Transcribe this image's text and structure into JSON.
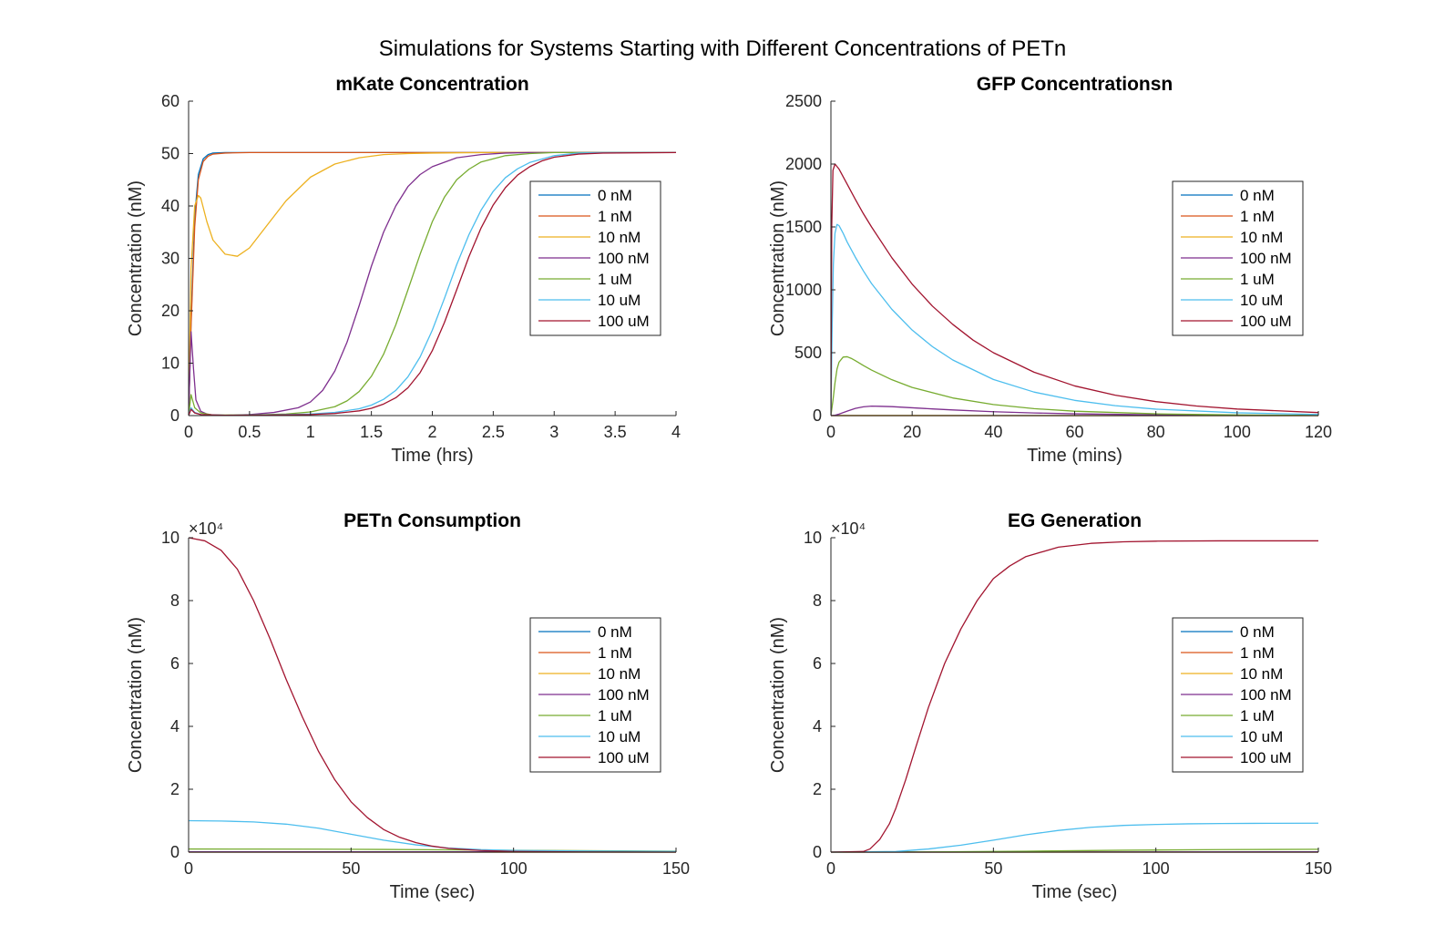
{
  "figure": {
    "title": "Simulations for Systems Starting with Different Concentrations of PETn"
  },
  "colors": {
    "0 nM": "#0072BD",
    "1 nM": "#D95319",
    "10 nM": "#EDB120",
    "100 nM": "#7E2F8E",
    "1 uM": "#77AC30",
    "10 uM": "#4DBEEE",
    "100 uM": "#A2142F"
  },
  "chart_data": [
    {
      "id": "mkate",
      "type": "line",
      "title": "mKate Concentration",
      "xlabel": "Time (hrs)",
      "ylabel": "Concentration (nM)",
      "xlim": [
        0,
        4
      ],
      "ylim": [
        0,
        60
      ],
      "xticks": [
        0,
        0.5,
        1,
        1.5,
        2,
        2.5,
        3,
        3.5,
        4
      ],
      "xticklabels": [
        "0",
        "0.5",
        "1",
        "1.5",
        "2",
        "2.5",
        "3",
        "3.5",
        "4"
      ],
      "yticks": [
        0,
        10,
        20,
        30,
        40,
        50,
        60
      ],
      "yticklabels": [
        "0",
        "10",
        "20",
        "30",
        "40",
        "50",
        "60"
      ],
      "exponent_label": "",
      "legend_position": "right",
      "series": [
        {
          "name": "0 nM",
          "x": [
            0,
            0.02,
            0.05,
            0.08,
            0.12,
            0.16,
            0.2,
            0.3,
            0.5,
            1,
            2,
            3,
            4
          ],
          "y": [
            0,
            18,
            38,
            46,
            49,
            49.8,
            50.1,
            50.2,
            50.2,
            50.2,
            50.2,
            50.2,
            50.2
          ]
        },
        {
          "name": "1 nM",
          "x": [
            0,
            0.02,
            0.05,
            0.08,
            0.12,
            0.16,
            0.2,
            0.3,
            0.5,
            1,
            2,
            3,
            4
          ],
          "y": [
            0,
            17,
            36,
            45,
            48.5,
            49.5,
            49.9,
            50.1,
            50.2,
            50.2,
            50.2,
            50.2,
            50.2
          ]
        },
        {
          "name": "10 nM",
          "x": [
            0,
            0.02,
            0.05,
            0.08,
            0.1,
            0.15,
            0.2,
            0.3,
            0.4,
            0.5,
            0.6,
            0.8,
            1.0,
            1.2,
            1.4,
            1.6,
            1.8,
            2.0,
            2.5,
            3,
            4
          ],
          "y": [
            0,
            28,
            40,
            42,
            41.5,
            37,
            33.5,
            30.8,
            30.4,
            32,
            35,
            41,
            45.5,
            48,
            49.2,
            49.8,
            50,
            50.1,
            50.2,
            50.2,
            50.2
          ]
        },
        {
          "name": "100 nM",
          "x": [
            0,
            0.02,
            0.04,
            0.06,
            0.1,
            0.15,
            0.2,
            0.3,
            0.5,
            0.7,
            0.9,
            1.0,
            1.1,
            1.2,
            1.3,
            1.4,
            1.5,
            1.6,
            1.7,
            1.8,
            1.9,
            2.0,
            2.2,
            2.4,
            2.6,
            2.8,
            3,
            4
          ],
          "y": [
            0,
            16,
            9,
            3,
            0.8,
            0.3,
            0.1,
            0.05,
            0.2,
            0.6,
            1.5,
            2.6,
            4.8,
            8.5,
            14,
            21,
            28.5,
            35,
            40,
            43.7,
            46,
            47.5,
            49.2,
            49.8,
            50.1,
            50.2,
            50.2,
            50.2
          ]
        },
        {
          "name": "1 uM",
          "x": [
            0,
            0.02,
            0.05,
            0.1,
            0.2,
            0.5,
            0.8,
            1.0,
            1.2,
            1.3,
            1.4,
            1.5,
            1.6,
            1.7,
            1.8,
            1.9,
            2.0,
            2.1,
            2.2,
            2.3,
            2.4,
            2.6,
            2.8,
            3.0,
            3.2,
            4
          ],
          "y": [
            0,
            4,
            1.5,
            0.5,
            0.1,
            0.1,
            0.3,
            0.7,
            1.7,
            2.8,
            4.6,
            7.5,
            11.7,
            17.3,
            24,
            30.8,
            37,
            41.7,
            45,
            47,
            48.4,
            49.6,
            50,
            50.2,
            50.2,
            50.2
          ]
        },
        {
          "name": "10 uM",
          "x": [
            0,
            0.02,
            0.05,
            0.1,
            0.3,
            0.6,
            1.0,
            1.2,
            1.4,
            1.5,
            1.6,
            1.7,
            1.8,
            1.9,
            2.0,
            2.1,
            2.2,
            2.3,
            2.4,
            2.5,
            2.6,
            2.7,
            2.8,
            3.0,
            3.2,
            3.4,
            4
          ],
          "y": [
            0,
            1.5,
            0.6,
            0.2,
            0.05,
            0.1,
            0.3,
            0.6,
            1.3,
            2,
            3.1,
            4.8,
            7.4,
            11.2,
            16.3,
            22.4,
            28.8,
            34.5,
            39.2,
            42.8,
            45.4,
            47.1,
            48.3,
            49.6,
            50.1,
            50.2,
            50.2
          ]
        },
        {
          "name": "100 uM",
          "x": [
            0,
            0.02,
            0.05,
            0.1,
            0.3,
            0.6,
            1.0,
            1.2,
            1.4,
            1.5,
            1.6,
            1.7,
            1.8,
            1.9,
            2.0,
            2.1,
            2.2,
            2.3,
            2.4,
            2.5,
            2.6,
            2.7,
            2.8,
            2.9,
            3.0,
            3.2,
            3.4,
            4
          ],
          "y": [
            0,
            1.2,
            0.5,
            0.2,
            0.05,
            0.08,
            0.2,
            0.4,
            0.9,
            1.4,
            2.2,
            3.4,
            5.3,
            8.2,
            12.4,
            17.8,
            24,
            30.3,
            35.8,
            40.2,
            43.5,
            45.9,
            47.5,
            48.6,
            49.3,
            49.9,
            50.1,
            50.2
          ]
        }
      ]
    },
    {
      "id": "gfp",
      "type": "line",
      "title": "GFP Concentrationsn",
      "xlabel": "Time (mins)",
      "ylabel": "Concentration (nM)",
      "xlim": [
        0,
        120
      ],
      "ylim": [
        0,
        2500
      ],
      "xticks": [
        0,
        20,
        40,
        60,
        80,
        100,
        120
      ],
      "xticklabels": [
        "0",
        "20",
        "40",
        "60",
        "80",
        "100",
        "120"
      ],
      "yticks": [
        0,
        500,
        1000,
        1500,
        2000,
        2500
      ],
      "yticklabels": [
        "0",
        "500",
        "1000",
        "1500",
        "2000",
        "2500"
      ],
      "exponent_label": "",
      "legend_position": "right",
      "series": [
        {
          "name": "0 nM",
          "x": [
            0,
            120
          ],
          "y": [
            0,
            0
          ]
        },
        {
          "name": "1 nM",
          "x": [
            0,
            120
          ],
          "y": [
            0,
            0
          ]
        },
        {
          "name": "10 nM",
          "x": [
            0,
            2,
            5,
            10,
            20,
            40,
            80,
            120
          ],
          "y": [
            0,
            0.3,
            0.5,
            0.5,
            0.4,
            0.2,
            0.05,
            0
          ]
        },
        {
          "name": "100 nM",
          "x": [
            0,
            1,
            2,
            4,
            6,
            8,
            10,
            12,
            15,
            20,
            25,
            30,
            40,
            50,
            60,
            80,
            100,
            120
          ],
          "y": [
            0,
            3,
            12,
            35,
            57,
            70,
            75,
            74,
            71,
            62,
            53,
            45,
            31,
            21,
            14,
            6,
            2.5,
            1
          ]
        },
        {
          "name": "1 uM",
          "x": [
            0,
            0.5,
            1,
            1.5,
            2,
            3,
            4,
            5,
            6,
            8,
            10,
            15,
            20,
            30,
            40,
            50,
            60,
            80,
            100,
            120
          ],
          "y": [
            0,
            120,
            260,
            370,
            425,
            465,
            468,
            455,
            437,
            398,
            362,
            285,
            224,
            140,
            88,
            55,
            35,
            14,
            5,
            2
          ]
        },
        {
          "name": "10 uM",
          "x": [
            0,
            0.3,
            0.6,
            1,
            1.5,
            2,
            3,
            4,
            6,
            8,
            10,
            15,
            20,
            25,
            30,
            40,
            50,
            60,
            70,
            80,
            100,
            120
          ],
          "y": [
            0,
            700,
            1200,
            1450,
            1520,
            1510,
            1450,
            1380,
            1260,
            1150,
            1050,
            845,
            680,
            548,
            442,
            287,
            187,
            121,
            79,
            51,
            22,
            9
          ]
        },
        {
          "name": "100 uM",
          "x": [
            0,
            0.2,
            0.5,
            1,
            2,
            4,
            6,
            8,
            10,
            15,
            20,
            25,
            30,
            35,
            40,
            50,
            60,
            70,
            80,
            90,
            100,
            120
          ],
          "y": [
            0,
            1500,
            1950,
            2000,
            1960,
            1840,
            1720,
            1605,
            1500,
            1255,
            1045,
            870,
            725,
            600,
            500,
            345,
            236,
            162,
            111,
            76,
            52,
            24
          ]
        }
      ]
    },
    {
      "id": "petn",
      "type": "line",
      "title": "PETn Consumption",
      "xlabel": "Time (sec)",
      "ylabel": "Concentration (nM)",
      "xlim": [
        0,
        150
      ],
      "ylim": [
        0,
        10
      ],
      "xticks": [
        0,
        50,
        100,
        150
      ],
      "xticklabels": [
        "0",
        "50",
        "100",
        "150"
      ],
      "yticks": [
        0,
        2,
        4,
        6,
        8,
        10
      ],
      "yticklabels": [
        "0",
        "2",
        "4",
        "6",
        "8",
        "10"
      ],
      "exponent_label": "×10⁴",
      "legend_position": "right",
      "series": [
        {
          "name": "0 nM",
          "x": [
            0,
            150
          ],
          "y": [
            0,
            0
          ]
        },
        {
          "name": "1 nM",
          "x": [
            0,
            150
          ],
          "y": [
            0.0001,
            5e-05
          ]
        },
        {
          "name": "10 nM",
          "x": [
            0,
            150
          ],
          "y": [
            0.001,
            0.0008
          ]
        },
        {
          "name": "100 nM",
          "x": [
            0,
            150
          ],
          "y": [
            0.01,
            0.008
          ]
        },
        {
          "name": "1 uM",
          "x": [
            0,
            20,
            40,
            60,
            80,
            100,
            120,
            150
          ],
          "y": [
            0.1,
            0.098,
            0.094,
            0.085,
            0.072,
            0.058,
            0.045,
            0.03
          ]
        },
        {
          "name": "10 uM",
          "x": [
            0,
            10,
            20,
            30,
            40,
            50,
            60,
            70,
            80,
            90,
            100,
            120,
            150
          ],
          "y": [
            1.0,
            0.99,
            0.96,
            0.89,
            0.76,
            0.57,
            0.38,
            0.23,
            0.13,
            0.08,
            0.055,
            0.035,
            0.02
          ]
        },
        {
          "name": "100 uM",
          "x": [
            0,
            5,
            10,
            15,
            20,
            25,
            30,
            35,
            40,
            45,
            50,
            55,
            60,
            65,
            70,
            75,
            80,
            90,
            100,
            120,
            150
          ],
          "y": [
            10,
            9.9,
            9.6,
            9.0,
            8.0,
            6.8,
            5.5,
            4.3,
            3.2,
            2.3,
            1.6,
            1.1,
            0.72,
            0.47,
            0.3,
            0.19,
            0.12,
            0.05,
            0.02,
            0.005,
            0.001
          ]
        }
      ]
    },
    {
      "id": "eg",
      "type": "line",
      "title": "EG Generation",
      "xlabel": "Time (sec)",
      "ylabel": "Concentration (nM)",
      "xlim": [
        0,
        150
      ],
      "ylim": [
        0,
        10
      ],
      "xticks": [
        0,
        50,
        100,
        150
      ],
      "xticklabels": [
        "0",
        "50",
        "100",
        "150"
      ],
      "yticks": [
        0,
        2,
        4,
        6,
        8,
        10
      ],
      "yticklabels": [
        "0",
        "2",
        "4",
        "6",
        "8",
        "10"
      ],
      "exponent_label": "×10⁴",
      "legend_position": "right",
      "series": [
        {
          "name": "0 nM",
          "x": [
            0,
            150
          ],
          "y": [
            0,
            0
          ]
        },
        {
          "name": "1 nM",
          "x": [
            0,
            150
          ],
          "y": [
            0,
            0.0001
          ]
        },
        {
          "name": "10 nM",
          "x": [
            0,
            150
          ],
          "y": [
            0,
            0.001
          ]
        },
        {
          "name": "100 nM",
          "x": [
            0,
            150
          ],
          "y": [
            0,
            0.01
          ]
        },
        {
          "name": "1 uM",
          "x": [
            0,
            30,
            60,
            90,
            120,
            150
          ],
          "y": [
            0,
            0.005,
            0.03,
            0.06,
            0.08,
            0.09
          ]
        },
        {
          "name": "10 uM",
          "x": [
            0,
            20,
            30,
            40,
            50,
            60,
            70,
            80,
            90,
            100,
            110,
            120,
            130,
            150
          ],
          "y": [
            0,
            0.02,
            0.1,
            0.22,
            0.38,
            0.55,
            0.69,
            0.79,
            0.85,
            0.88,
            0.9,
            0.91,
            0.915,
            0.92
          ]
        },
        {
          "name": "100 uM",
          "x": [
            0,
            10,
            12,
            15,
            18,
            20,
            23,
            26,
            30,
            35,
            40,
            45,
            50,
            55,
            60,
            70,
            80,
            90,
            100,
            120,
            150
          ],
          "y": [
            0,
            0.02,
            0.1,
            0.4,
            0.9,
            1.4,
            2.3,
            3.3,
            4.6,
            6.0,
            7.1,
            8.0,
            8.7,
            9.1,
            9.4,
            9.7,
            9.82,
            9.87,
            9.89,
            9.9,
            9.9
          ]
        }
      ]
    }
  ]
}
